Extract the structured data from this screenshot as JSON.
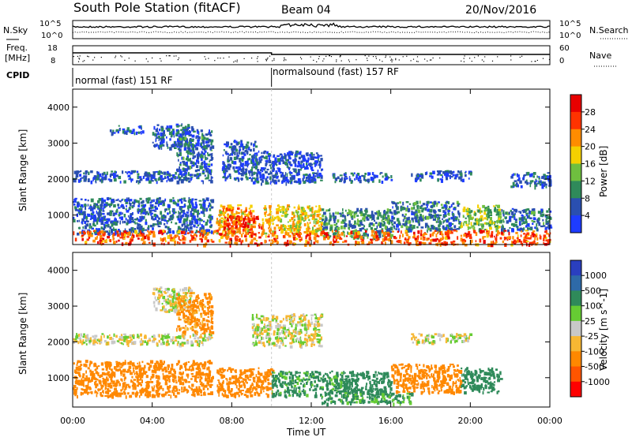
{
  "header": {
    "title": "South Pole Station (fitACF)",
    "beam": "Beam 04",
    "date": "20/Nov/2016"
  },
  "top_panels": {
    "nsky_label": "N.Sky",
    "nsearch_label": "N.Search",
    "noise_ticks": [
      "10^5",
      "10^0"
    ],
    "freq_label_1": "Freq.",
    "freq_label_2": "[MHz]",
    "freq_ticks": [
      "18",
      "8"
    ],
    "nave_label": "Nave",
    "nave_ticks": [
      "60",
      "0"
    ],
    "cpid_label": "CPID",
    "cpid_segments": [
      {
        "label": "normal (fast) 151 RF",
        "start_hour": 0,
        "end_hour": 10
      },
      {
        "label": "normalsound (fast) 157 RF",
        "start_hour": 10,
        "end_hour": 24
      }
    ]
  },
  "colors": {
    "power_scale": [
      "#1e3cff",
      "#2a4fb0",
      "#2f8a5a",
      "#6fbf3f",
      "#f5d000",
      "#ff8c00",
      "#ff3300",
      "#e80000"
    ],
    "velocity_scale": [
      "#2a3fbf",
      "#2e6aa8",
      "#2f8a5a",
      "#66cc33",
      "#c8c8c8",
      "#f7b733",
      "#ff8800",
      "#ff5500",
      "#ff0000"
    ]
  },
  "chart_data": [
    {
      "type": "heatmap",
      "title": "",
      "xlabel": "Time UT",
      "ylabel": "Slant Range [km]",
      "x_ticks": [
        "00:00",
        "04:00",
        "08:00",
        "12:00",
        "16:00",
        "20:00",
        "00:00"
      ],
      "y_ticks": [
        "1000",
        "2000",
        "3000",
        "4000"
      ],
      "xlim_hours": [
        0,
        24
      ],
      "ylim_km": [
        180,
        4500
      ],
      "colorbar": {
        "label": "Power [dB]",
        "tick_labels": [
          "4",
          "8",
          "12",
          "16",
          "20",
          "24",
          "28"
        ],
        "range": [
          0,
          32
        ]
      },
      "echo_regions": [
        {
          "t0": 4.0,
          "t1": 6.0,
          "r0": 2850,
          "r1": 3550,
          "value": 6
        },
        {
          "t0": 1.8,
          "t1": 3.5,
          "r0": 3300,
          "r1": 3500,
          "value": 5
        },
        {
          "t0": 0.0,
          "t1": 7.0,
          "r0": 1950,
          "r1": 2250,
          "value": 6
        },
        {
          "t0": 5.2,
          "t1": 7.0,
          "r0": 2250,
          "r1": 3400,
          "value": 7
        },
        {
          "t0": 7.5,
          "t1": 9.2,
          "r0": 2000,
          "r1": 3100,
          "value": 6
        },
        {
          "t0": 9.0,
          "t1": 12.5,
          "r0": 1900,
          "r1": 2800,
          "value": 5
        },
        {
          "t0": 13.0,
          "t1": 16.0,
          "r0": 1950,
          "r1": 2200,
          "value": 5
        },
        {
          "t0": 17.0,
          "t1": 20.0,
          "r0": 2000,
          "r1": 2250,
          "value": 5
        },
        {
          "t0": 22.0,
          "t1": 24.0,
          "r0": 1800,
          "r1": 2200,
          "value": 5
        },
        {
          "t0": 0.0,
          "t1": 7.0,
          "r0": 500,
          "r1": 1500,
          "value": 6
        },
        {
          "t0": 7.2,
          "t1": 9.0,
          "r0": 500,
          "r1": 1300,
          "value": 20
        },
        {
          "t0": 7.5,
          "t1": 9.5,
          "r0": 600,
          "r1": 1000,
          "value": 27
        },
        {
          "t0": 9.5,
          "t1": 12.5,
          "r0": 500,
          "r1": 1300,
          "value": 18
        },
        {
          "t0": 12.5,
          "t1": 16.0,
          "r0": 400,
          "r1": 1200,
          "value": 10
        },
        {
          "t0": 16.0,
          "t1": 19.5,
          "r0": 600,
          "r1": 1400,
          "value": 8
        },
        {
          "t0": 19.5,
          "t1": 21.5,
          "r0": 600,
          "r1": 1300,
          "value": 14
        },
        {
          "t0": 21.5,
          "t1": 24.0,
          "r0": 600,
          "r1": 1200,
          "value": 7
        },
        {
          "t0": 0.0,
          "t1": 24.0,
          "r0": 200,
          "r1": 600,
          "value": 25
        }
      ]
    },
    {
      "type": "heatmap",
      "title": "",
      "xlabel": "Time UT",
      "ylabel": "Slant Range [km]",
      "x_ticks": [
        "00:00",
        "04:00",
        "08:00",
        "12:00",
        "16:00",
        "20:00",
        "00:00"
      ],
      "y_ticks": [
        "1000",
        "2000",
        "3000",
        "4000"
      ],
      "xlim_hours": [
        0,
        24
      ],
      "ylim_km": [
        180,
        4500
      ],
      "colorbar": {
        "label": "Velocity [m s^-1]",
        "tick_labels": [
          "1000",
          "500",
          "100",
          "25",
          "-25",
          "-100",
          "-500",
          "-1000"
        ]
      },
      "echo_regions": [
        {
          "t0": 4.0,
          "t1": 6.0,
          "r0": 2850,
          "r1": 3550,
          "value": 0
        },
        {
          "t0": 5.2,
          "t1": 7.0,
          "r0": 2250,
          "r1": 3400,
          "value": -150
        },
        {
          "t0": 0.0,
          "t1": 7.0,
          "r0": 1950,
          "r1": 2250,
          "value": 0
        },
        {
          "t0": 9.0,
          "t1": 12.5,
          "r0": 1900,
          "r1": 2800,
          "value": 0
        },
        {
          "t0": 17.0,
          "t1": 20.0,
          "r0": 2000,
          "r1": 2250,
          "value": 0
        },
        {
          "t0": 0.0,
          "t1": 7.0,
          "r0": 500,
          "r1": 1500,
          "value": -200
        },
        {
          "t0": 7.2,
          "t1": 10.0,
          "r0": 500,
          "r1": 1300,
          "value": -300
        },
        {
          "t0": 10.0,
          "t1": 13.5,
          "r0": 500,
          "r1": 1200,
          "value": 150
        },
        {
          "t0": 13.5,
          "t1": 16.0,
          "r0": 500,
          "r1": 1200,
          "value": 400
        },
        {
          "t0": 16.0,
          "t1": 19.5,
          "r0": 600,
          "r1": 1400,
          "value": -200
        },
        {
          "t0": 19.5,
          "t1": 21.5,
          "r0": 600,
          "r1": 1300,
          "value": 300
        },
        {
          "t0": 12.5,
          "t1": 17.0,
          "r0": 300,
          "r1": 600,
          "value": 120
        }
      ]
    }
  ]
}
